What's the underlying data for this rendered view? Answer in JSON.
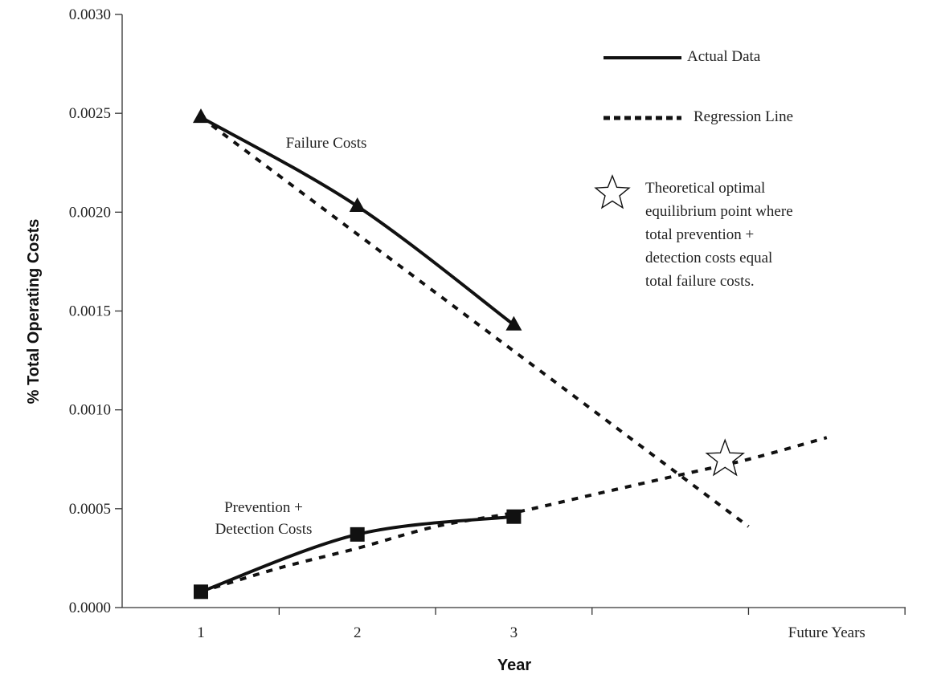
{
  "chart_data": {
    "type": "line",
    "title": "",
    "xlabel": "Year",
    "ylabel": "% Total Operating Costs",
    "x_categories": [
      "1",
      "2",
      "3",
      "",
      "Future Years"
    ],
    "ylim": [
      0,
      0.003
    ],
    "y_ticks": [
      {
        "value": 0,
        "label": "0.0000"
      },
      {
        "value": 0.0005,
        "label": "0.0005"
      },
      {
        "value": 0.001,
        "label": "0.0010"
      },
      {
        "value": 0.0015,
        "label": "0.0015"
      },
      {
        "value": 0.002,
        "label": "0.0020"
      },
      {
        "value": 0.0025,
        "label": "0.0025"
      },
      {
        "value": 0.003,
        "label": "0.0030"
      }
    ],
    "grid": false,
    "legend_position": "top-right",
    "legend": [
      {
        "label": "Actual Data",
        "style": "solid"
      },
      {
        "label": "Regression  Line",
        "style": "dotted"
      }
    ],
    "series": [
      {
        "label": "Failure Costs",
        "marker": "triangle",
        "actual": [
          [
            1,
            0.00248
          ],
          [
            2,
            0.00203
          ],
          [
            3,
            0.00143
          ]
        ],
        "regression": [
          [
            1,
            0.00248
          ],
          [
            4.5,
            0.00041
          ]
        ]
      },
      {
        "label": "Prevention + Detection Costs",
        "label_lines": [
          "Prevention +",
          "Detection Costs"
        ],
        "marker": "square",
        "actual": [
          [
            1,
            8e-05
          ],
          [
            2,
            0.00037
          ],
          [
            3,
            0.00046
          ]
        ],
        "regression": [
          [
            1,
            8e-05
          ],
          [
            1.5,
            0.0002
          ],
          [
            2,
            0.0003
          ],
          [
            2.5,
            0.00041
          ],
          [
            3,
            0.00048
          ],
          [
            3.5,
            0.00057
          ],
          [
            4,
            0.00066
          ],
          [
            4.5,
            0.00075
          ],
          [
            5,
            0.00086
          ]
        ]
      }
    ],
    "annotations": [
      {
        "marker": "star",
        "x": 4.35,
        "y": 0.00075,
        "text_lines": [
          "Theoretical optimal",
          "equilibrium point where",
          "total prevention +",
          "detection costs equal",
          "total failure costs."
        ]
      }
    ],
    "colors": {
      "line": "#111111",
      "axis": "#333333",
      "star_fill": "#ffffff"
    }
  }
}
